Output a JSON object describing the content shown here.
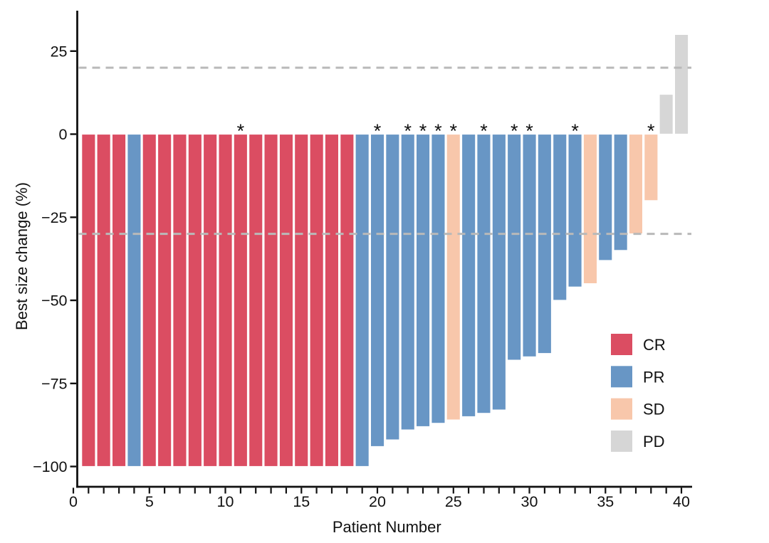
{
  "chart_data": {
    "type": "bar",
    "subtype": "waterfall",
    "title": "",
    "xlabel": "Patient Number",
    "ylabel": "Best size change (%)",
    "x_tick_labels": [
      0,
      5,
      10,
      15,
      20,
      25,
      30,
      35,
      40
    ],
    "x_minor_tick_step": 1,
    "x_minor_tick_range": [
      0,
      40
    ],
    "y_ticks": [
      25,
      0,
      -25,
      -50,
      -75,
      -100
    ],
    "xlim": [
      -0.3,
      40.7
    ],
    "ylim": [
      -106,
      37
    ],
    "grid": false,
    "bar_outline_color": "#ffffff",
    "reference_lines": [
      {
        "y": 20,
        "style": "dashed",
        "color": "#b9b9b9"
      },
      {
        "y": -30,
        "style": "dashed",
        "color": "#b9b9b9"
      }
    ],
    "annotation_symbol": "*",
    "legend": {
      "position": "inside-bottom-right",
      "entries": [
        {
          "label": "CR",
          "color": "#db4d62"
        },
        {
          "label": "PR",
          "color": "#6896c5"
        },
        {
          "label": "SD",
          "color": "#f8c7ab"
        },
        {
          "label": "PD",
          "color": "#d6d6d6"
        }
      ]
    },
    "patients": [
      {
        "n": 1,
        "value": -100,
        "response": "CR",
        "star": false
      },
      {
        "n": 2,
        "value": -100,
        "response": "CR",
        "star": false
      },
      {
        "n": 3,
        "value": -100,
        "response": "CR",
        "star": false
      },
      {
        "n": 4,
        "value": -100,
        "response": "PR",
        "star": false
      },
      {
        "n": 5,
        "value": -100,
        "response": "CR",
        "star": false
      },
      {
        "n": 6,
        "value": -100,
        "response": "CR",
        "star": false
      },
      {
        "n": 7,
        "value": -100,
        "response": "CR",
        "star": false
      },
      {
        "n": 8,
        "value": -100,
        "response": "CR",
        "star": false
      },
      {
        "n": 9,
        "value": -100,
        "response": "CR",
        "star": false
      },
      {
        "n": 10,
        "value": -100,
        "response": "CR",
        "star": false
      },
      {
        "n": 11,
        "value": -100,
        "response": "CR",
        "star": true
      },
      {
        "n": 12,
        "value": -100,
        "response": "CR",
        "star": false
      },
      {
        "n": 13,
        "value": -100,
        "response": "CR",
        "star": false
      },
      {
        "n": 14,
        "value": -100,
        "response": "CR",
        "star": false
      },
      {
        "n": 15,
        "value": -100,
        "response": "CR",
        "star": false
      },
      {
        "n": 16,
        "value": -100,
        "response": "CR",
        "star": false
      },
      {
        "n": 17,
        "value": -100,
        "response": "CR",
        "star": false
      },
      {
        "n": 18,
        "value": -100,
        "response": "CR",
        "star": false
      },
      {
        "n": 19,
        "value": -100,
        "response": "PR",
        "star": false
      },
      {
        "n": 20,
        "value": -94,
        "response": "PR",
        "star": true
      },
      {
        "n": 21,
        "value": -92,
        "response": "PR",
        "star": false
      },
      {
        "n": 22,
        "value": -89,
        "response": "PR",
        "star": true
      },
      {
        "n": 23,
        "value": -88,
        "response": "PR",
        "star": true
      },
      {
        "n": 24,
        "value": -87,
        "response": "PR",
        "star": true
      },
      {
        "n": 25,
        "value": -86,
        "response": "SD",
        "star": true
      },
      {
        "n": 26,
        "value": -85,
        "response": "PR",
        "star": false
      },
      {
        "n": 27,
        "value": -84,
        "response": "PR",
        "star": true
      },
      {
        "n": 28,
        "value": -83,
        "response": "PR",
        "star": false
      },
      {
        "n": 29,
        "value": -68,
        "response": "PR",
        "star": true
      },
      {
        "n": 30,
        "value": -67,
        "response": "PR",
        "star": true
      },
      {
        "n": 31,
        "value": -66,
        "response": "PR",
        "star": false
      },
      {
        "n": 32,
        "value": -50,
        "response": "PR",
        "star": false
      },
      {
        "n": 33,
        "value": -46,
        "response": "PR",
        "star": true
      },
      {
        "n": 34,
        "value": -45,
        "response": "SD",
        "star": false
      },
      {
        "n": 35,
        "value": -38,
        "response": "PR",
        "star": false
      },
      {
        "n": 36,
        "value": -35,
        "response": "PR",
        "star": false
      },
      {
        "n": 37,
        "value": -30,
        "response": "SD",
        "star": false
      },
      {
        "n": 38,
        "value": -20,
        "response": "SD",
        "star": true
      },
      {
        "n": 39,
        "value": 12,
        "response": "PD",
        "star": false
      },
      {
        "n": 40,
        "value": 30,
        "response": "PD",
        "star": false
      }
    ]
  },
  "colors": {
    "axis": "#111111",
    "text": "#111111",
    "background": "#ffffff"
  }
}
